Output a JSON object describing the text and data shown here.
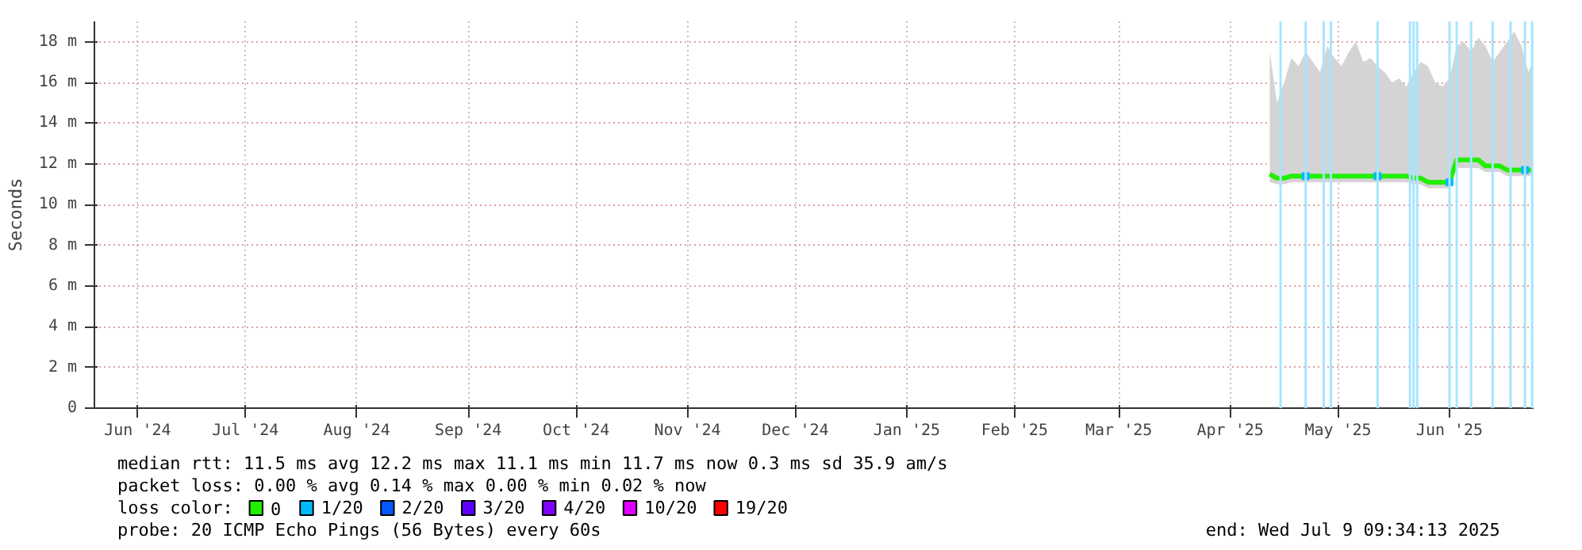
{
  "chart_data": {
    "type": "line",
    "ylabel": "Seconds",
    "xlim": [
      "2024-06-04",
      "2025-07-09T09:34"
    ],
    "xticks": [
      {
        "value": "2024-06-16",
        "label": "Jun '24"
      },
      {
        "value": "2024-07-16",
        "label": "Jul '24"
      },
      {
        "value": "2024-08-16",
        "label": "Aug '24"
      },
      {
        "value": "2024-09-16",
        "label": "Sep '24"
      },
      {
        "value": "2024-10-16",
        "label": "Oct '24"
      },
      {
        "value": "2024-11-16",
        "label": "Nov '24"
      },
      {
        "value": "2024-12-16",
        "label": "Dec '24"
      },
      {
        "value": "2025-01-16",
        "label": "Jan '25"
      },
      {
        "value": "2025-02-15",
        "label": "Feb '25"
      },
      {
        "value": "2025-03-16",
        "label": "Mar '25"
      },
      {
        "value": "2025-04-16",
        "label": "Apr '25"
      },
      {
        "value": "2025-05-16",
        "label": "May '25"
      },
      {
        "value": "2025-06-16",
        "label": "Jun '25"
      }
    ],
    "ylim": [
      0,
      19
    ],
    "yticks": [
      0,
      {
        "value": 2,
        "label": "2 m"
      },
      {
        "value": 4,
        "label": "4 m"
      },
      {
        "value": 6,
        "label": "6 m"
      },
      {
        "value": 8,
        "label": "8 m"
      },
      {
        "value": 10,
        "label": "10 m"
      },
      {
        "value": 12,
        "label": "12 m"
      },
      {
        "value": 14,
        "label": "14 m"
      },
      {
        "value": 16,
        "label": "16 m"
      },
      {
        "value": 18,
        "label": "18 m"
      }
    ],
    "grid": true,
    "legend": "bottom left",
    "legend_title": "loss color:",
    "line_style": "solid",
    "x": [
      "2025-04-27",
      "2025-04-29",
      "2025-05-01",
      "2025-05-03",
      "2025-05-05",
      "2025-05-07",
      "2025-05-09",
      "2025-05-11",
      "2025-05-13",
      "2025-05-15",
      "2025-05-17",
      "2025-05-19",
      "2025-05-21",
      "2025-05-23",
      "2025-05-25",
      "2025-05-27",
      "2025-05-29",
      "2025-05-31",
      "2025-06-02",
      "2025-06-04",
      "2025-06-06",
      "2025-06-08",
      "2025-06-10",
      "2025-06-12",
      "2025-06-14",
      "2025-06-16",
      "2025-06-18",
      "2025-06-20",
      "2025-06-22",
      "2025-06-24",
      "2025-06-26",
      "2025-06-28",
      "2025-06-30",
      "2025-07-02",
      "2025-07-04",
      "2025-07-06",
      "2025-07-08",
      "2025-07-09"
    ],
    "series": [
      {
        "name": "0",
        "color": "#22ee00",
        "values": [
          11.5,
          11.3,
          11.3,
          11.4,
          11.4,
          11.4,
          11.4,
          11.4,
          11.4,
          11.4,
          11.4,
          11.4,
          11.4,
          11.4,
          11.4,
          11.4,
          11.4,
          11.4,
          11.4,
          11.4,
          11.3,
          11.3,
          11.1,
          11.1,
          11.1,
          11.1,
          12.2,
          12.2,
          12.2,
          12.2,
          11.9,
          11.9,
          11.9,
          11.7,
          11.7,
          11.7,
          11.7,
          11.7
        ],
        "lower": [
          11.1,
          11.0,
          11.0,
          11.1,
          11.1,
          11.1,
          11.1,
          11.1,
          11.1,
          11.1,
          11.1,
          11.1,
          11.1,
          11.1,
          11.1,
          11.1,
          11.1,
          11.1,
          11.1,
          11.1,
          11.0,
          11.0,
          10.8,
          10.8,
          10.8,
          10.8,
          11.8,
          11.8,
          11.8,
          11.8,
          11.6,
          11.6,
          11.6,
          11.4,
          11.4,
          11.4,
          11.4,
          11.4
        ],
        "upper": [
          17.5,
          15.0,
          16.0,
          17.2,
          16.8,
          17.5,
          17.0,
          16.5,
          17.8,
          17.2,
          16.8,
          17.5,
          18.0,
          17.0,
          17.2,
          16.8,
          16.5,
          16.0,
          16.2,
          15.8,
          16.5,
          17.0,
          16.8,
          16.0,
          15.8,
          16.2,
          17.8,
          18.0,
          17.5,
          18.2,
          17.8,
          17.0,
          17.5,
          18.0,
          18.5,
          17.8,
          16.5,
          17.0
        ]
      },
      {
        "name": "1/20",
        "color": "#00b8ff",
        "type": "scatter",
        "x": [
          "2025-05-07",
          "2025-05-27",
          "2025-06-16",
          "2025-07-07"
        ],
        "values": [
          11.4,
          11.4,
          11.1,
          11.7
        ]
      },
      {
        "name": "2/20",
        "color": "#0059ff",
        "type": "scatter",
        "values": [
          null,
          null,
          null,
          null,
          null,
          null,
          null,
          null,
          null,
          null,
          null,
          null,
          null,
          null,
          null,
          null,
          null,
          null,
          null,
          null,
          null,
          null,
          null,
          null,
          null,
          null,
          null,
          null,
          null,
          null,
          null,
          null,
          null,
          null,
          null,
          null,
          null,
          null
        ]
      },
      {
        "name": "3/20",
        "color": "#5e00ff",
        "type": "scatter",
        "values": [
          null,
          null,
          null,
          null,
          null,
          null,
          null,
          null,
          null,
          null,
          null,
          null,
          null,
          null,
          null,
          null,
          null,
          null,
          null,
          null,
          null,
          null,
          null,
          null,
          null,
          null,
          null,
          null,
          null,
          null,
          null,
          null,
          null,
          null,
          null,
          null,
          null,
          null
        ]
      },
      {
        "name": "4/20",
        "color": "#7e00ff",
        "type": "scatter",
        "values": [
          null,
          null,
          null,
          null,
          null,
          null,
          null,
          null,
          null,
          null,
          null,
          null,
          null,
          null,
          null,
          null,
          null,
          null,
          null,
          null,
          null,
          null,
          null,
          null,
          null,
          null,
          null,
          null,
          null,
          null,
          null,
          null,
          null,
          null,
          null,
          null,
          null,
          null
        ]
      },
      {
        "name": "10/20",
        "color": "#dd00ff",
        "type": "scatter",
        "values": [
          null,
          null,
          null,
          null,
          null,
          null,
          null,
          null,
          null,
          null,
          null,
          null,
          null,
          null,
          null,
          null,
          null,
          null,
          null,
          null,
          null,
          null,
          null,
          null,
          null,
          null,
          null,
          null,
          null,
          null,
          null,
          null,
          null,
          null,
          null,
          null,
          null,
          null
        ]
      },
      {
        "name": "19/20",
        "color": "#ff0000",
        "type": "scatter",
        "values": [
          null,
          null,
          null,
          null,
          null,
          null,
          null,
          null,
          null,
          null,
          null,
          null,
          null,
          null,
          null,
          null,
          null,
          null,
          null,
          null,
          null,
          null,
          null,
          null,
          null,
          null,
          null,
          null,
          null,
          null,
          null,
          null,
          null,
          null,
          null,
          null,
          null,
          null
        ]
      }
    ],
    "ref_lines": [
      {
        "axis": "x",
        "value": "2025-04-30",
        "color": "#a8e4ff"
      },
      {
        "axis": "x",
        "value": "2025-05-07",
        "color": "#a8e4ff"
      },
      {
        "axis": "x",
        "value": "2025-05-12",
        "color": "#a8e4ff"
      },
      {
        "axis": "x",
        "value": "2025-05-14",
        "color": "#a8e4ff"
      },
      {
        "axis": "x",
        "value": "2025-05-27",
        "color": "#a8e4ff"
      },
      {
        "axis": "x",
        "value": "2025-06-05",
        "color": "#a8e4ff"
      },
      {
        "axis": "x",
        "value": "2025-06-06",
        "color": "#a8e4ff"
      },
      {
        "axis": "x",
        "value": "2025-06-07",
        "color": "#a8e4ff"
      },
      {
        "axis": "x",
        "value": "2025-06-16",
        "color": "#a8e4ff"
      },
      {
        "axis": "x",
        "value": "2025-06-18",
        "color": "#a8e4ff"
      },
      {
        "axis": "x",
        "value": "2025-06-22",
        "color": "#a8e4ff"
      },
      {
        "axis": "x",
        "value": "2025-06-28",
        "color": "#a8e4ff"
      },
      {
        "axis": "x",
        "value": "2025-07-03",
        "color": "#a8e4ff"
      },
      {
        "axis": "x",
        "value": "2025-07-07",
        "color": "#a8e4ff"
      },
      {
        "axis": "x",
        "value": "2025-07-09",
        "color": "#a8e4ff"
      }
    ],
    "annotations": [
      "median rtt:  11.5 ms avg  12.2 ms max  11.1 ms min  11.7 ms now  0.3 ms sd  35.9   am/s",
      "packet loss: 0.00 % avg  0.14 % max  0.00 % min  0.02 % now",
      "probe:       20 ICMP Echo Pings (56 Bytes) every 60s",
      "end: Wed Jul  9 09:34:13 2025"
    ]
  }
}
